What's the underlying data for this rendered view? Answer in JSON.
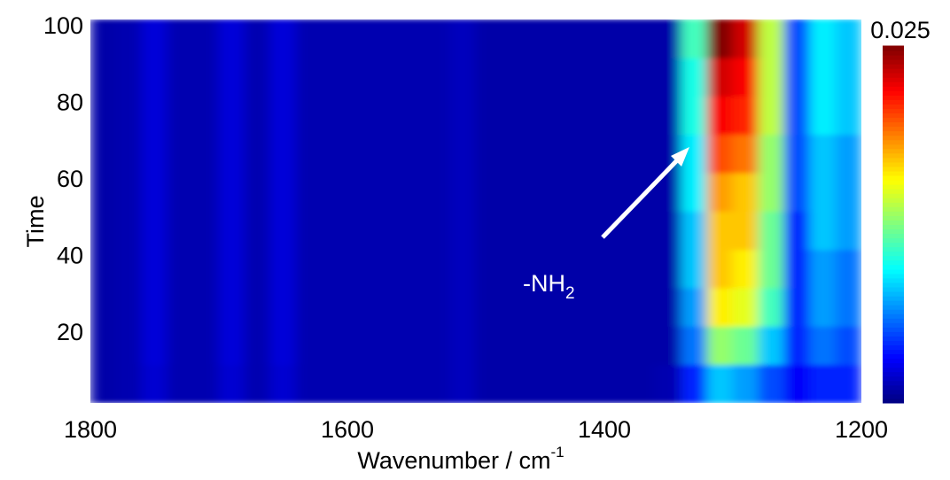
{
  "chart_data": {
    "type": "heatmap",
    "xlabel": "Wavenumber / cm",
    "xlabel_superscript": "-1",
    "ylabel": "Time",
    "x": [
      1790,
      1770,
      1750,
      1730,
      1710,
      1690,
      1670,
      1650,
      1630,
      1610,
      1590,
      1570,
      1550,
      1530,
      1510,
      1490,
      1470,
      1450,
      1430,
      1410,
      1390,
      1370,
      1350,
      1330,
      1310,
      1290,
      1270,
      1250,
      1230,
      1210
    ],
    "y": [
      7,
      17,
      27,
      37,
      47,
      57,
      67,
      77,
      87,
      97
    ],
    "xlim": [
      1800,
      1200
    ],
    "ylim": [
      2,
      102
    ],
    "xticks": [
      1800,
      1600,
      1400,
      1200
    ],
    "yticks": [
      20,
      40,
      60,
      80,
      100
    ],
    "colorscale": "jet",
    "clim": [
      0,
      0.025
    ],
    "colorbar_ticks": [
      0.025
    ],
    "annotation": {
      "text": "-NH",
      "subscript": "2"
    },
    "z": [
      [
        0.001,
        0.0012,
        0.002,
        0.0012,
        0.0012,
        0.002,
        0.0012,
        0.002,
        0.0012,
        0.0012,
        0.0012,
        0.0012,
        0.0012,
        0.0012,
        0.0015,
        0.001,
        0.001,
        0.001,
        0.001,
        0.001,
        0.001,
        0.001,
        0.0012,
        0.004,
        0.008,
        0.007,
        0.005,
        0.003,
        0.004,
        0.004
      ],
      [
        0.001,
        0.0012,
        0.0022,
        0.0012,
        0.0012,
        0.0022,
        0.0012,
        0.0022,
        0.0012,
        0.0012,
        0.0012,
        0.0012,
        0.0012,
        0.0012,
        0.0015,
        0.001,
        0.001,
        0.001,
        0.001,
        0.001,
        0.001,
        0.001,
        0.001,
        0.006,
        0.013,
        0.012,
        0.008,
        0.004,
        0.006,
        0.005
      ],
      [
        0.001,
        0.0012,
        0.0022,
        0.0012,
        0.0012,
        0.0022,
        0.0012,
        0.0022,
        0.0012,
        0.0012,
        0.0012,
        0.0012,
        0.0012,
        0.0012,
        0.0015,
        0.001,
        0.001,
        0.001,
        0.001,
        0.001,
        0.001,
        0.001,
        0.001,
        0.007,
        0.016,
        0.015,
        0.011,
        0.004,
        0.007,
        0.006
      ],
      [
        0.001,
        0.0012,
        0.0022,
        0.0012,
        0.0012,
        0.0022,
        0.0012,
        0.0022,
        0.0012,
        0.0012,
        0.0012,
        0.0012,
        0.0012,
        0.0012,
        0.0015,
        0.001,
        0.001,
        0.001,
        0.001,
        0.001,
        0.001,
        0.001,
        0.001,
        0.008,
        0.017,
        0.016,
        0.012,
        0.004,
        0.007,
        0.006
      ],
      [
        0.001,
        0.0012,
        0.0022,
        0.0012,
        0.0012,
        0.0022,
        0.0012,
        0.0022,
        0.0012,
        0.0012,
        0.0012,
        0.0012,
        0.0012,
        0.0012,
        0.0015,
        0.001,
        0.001,
        0.001,
        0.001,
        0.001,
        0.001,
        0.001,
        0.001,
        0.008,
        0.017,
        0.017,
        0.012,
        0.004,
        0.008,
        0.007
      ],
      [
        0.001,
        0.0012,
        0.0022,
        0.0012,
        0.0012,
        0.0022,
        0.0012,
        0.0022,
        0.0012,
        0.0012,
        0.0012,
        0.0012,
        0.0012,
        0.0012,
        0.0015,
        0.001,
        0.001,
        0.001,
        0.001,
        0.001,
        0.001,
        0.001,
        0.001,
        0.009,
        0.018,
        0.017,
        0.013,
        0.005,
        0.008,
        0.007
      ],
      [
        0.001,
        0.0012,
        0.0022,
        0.0012,
        0.0012,
        0.0022,
        0.0012,
        0.0022,
        0.0012,
        0.0012,
        0.0012,
        0.0012,
        0.0012,
        0.0012,
        0.0015,
        0.001,
        0.001,
        0.001,
        0.001,
        0.001,
        0.001,
        0.001,
        0.001,
        0.009,
        0.02,
        0.019,
        0.013,
        0.005,
        0.008,
        0.007
      ],
      [
        0.001,
        0.0012,
        0.0022,
        0.0012,
        0.0012,
        0.0022,
        0.0012,
        0.0022,
        0.0012,
        0.0012,
        0.0012,
        0.0012,
        0.0012,
        0.0012,
        0.0015,
        0.001,
        0.001,
        0.001,
        0.001,
        0.001,
        0.001,
        0.001,
        0.001,
        0.01,
        0.022,
        0.021,
        0.014,
        0.005,
        0.009,
        0.008
      ],
      [
        0.001,
        0.0012,
        0.0022,
        0.0012,
        0.0012,
        0.0022,
        0.0012,
        0.0022,
        0.0012,
        0.0012,
        0.0012,
        0.0012,
        0.0012,
        0.0012,
        0.0015,
        0.001,
        0.001,
        0.001,
        0.001,
        0.001,
        0.001,
        0.001,
        0.001,
        0.01,
        0.023,
        0.022,
        0.014,
        0.005,
        0.009,
        0.008
      ],
      [
        0.001,
        0.0012,
        0.0022,
        0.0012,
        0.0012,
        0.0022,
        0.0012,
        0.0022,
        0.0012,
        0.0012,
        0.0012,
        0.0012,
        0.0012,
        0.0012,
        0.0015,
        0.001,
        0.001,
        0.001,
        0.001,
        0.001,
        0.001,
        0.001,
        0.001,
        0.011,
        0.025,
        0.023,
        0.014,
        0.005,
        0.009,
        0.008
      ]
    ]
  }
}
